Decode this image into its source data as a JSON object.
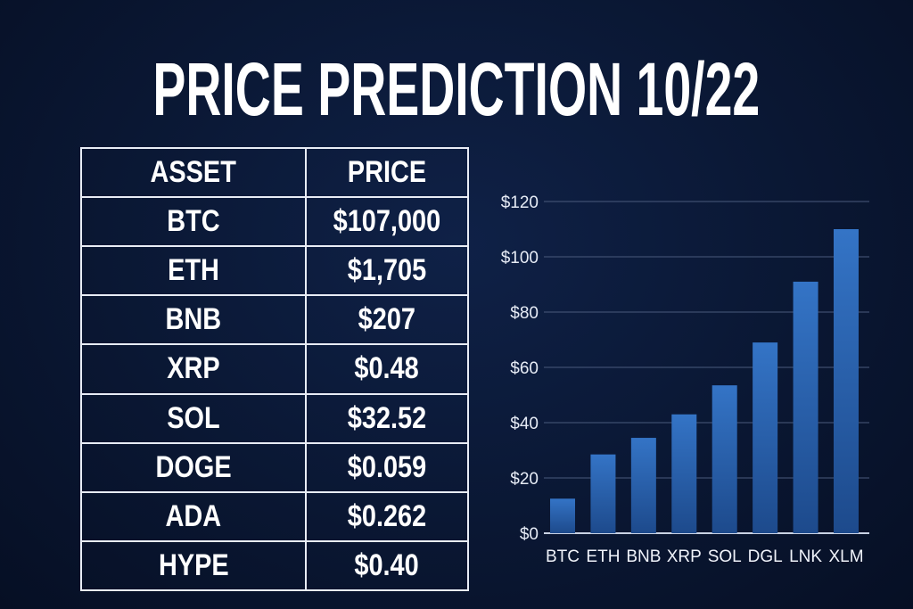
{
  "title": "PRICE PREDICTION 10/22",
  "table": {
    "headers": [
      "ASSET",
      "PRICE"
    ],
    "rows": [
      [
        "BTC",
        "$107,000"
      ],
      [
        "ETH",
        "$1,705"
      ],
      [
        "BNB",
        "$207"
      ],
      [
        "XRP",
        "$0.48"
      ],
      [
        "SOL",
        "$32.52"
      ],
      [
        "DOGE",
        "$0.059"
      ],
      [
        "ADA",
        "$0.262"
      ],
      [
        "HYPE",
        "$0.40"
      ]
    ]
  },
  "chart_data": {
    "type": "bar",
    "categories": [
      "BTC",
      "ETH",
      "BNB",
      "XRP",
      "SOL",
      "DGL",
      "LNK",
      "XLM"
    ],
    "values": [
      12.5,
      28.5,
      34.5,
      43,
      53.5,
      69,
      91,
      110
    ],
    "ylim": [
      0,
      120
    ],
    "yticks": [
      "$0",
      "$20",
      "$40",
      "$60",
      "$80",
      "$100",
      "$120"
    ],
    "grid": true,
    "bar_color": "#2f6cc0"
  }
}
